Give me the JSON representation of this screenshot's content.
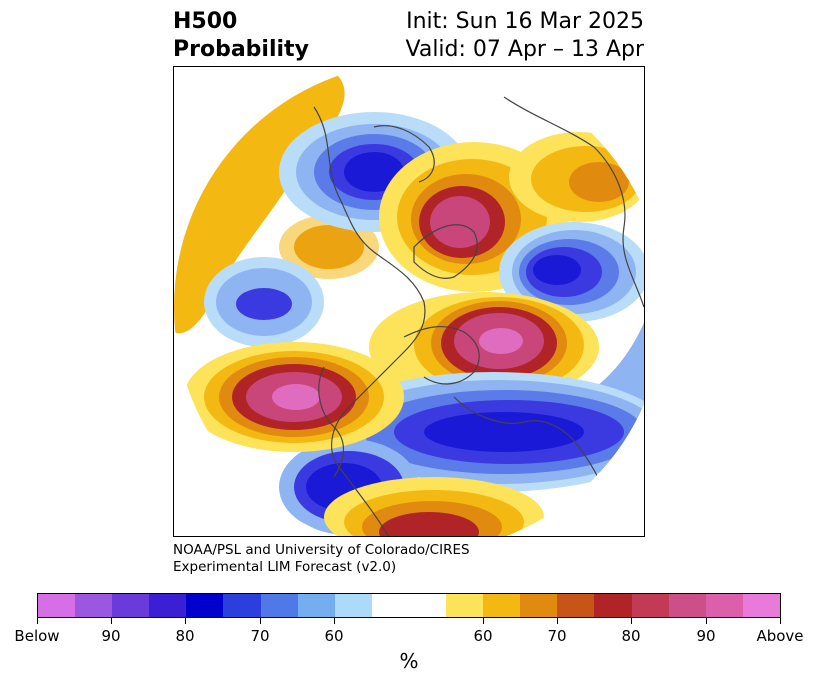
{
  "header": {
    "title_line1": "H500",
    "title_line2": "Probability",
    "init": "Init: Sun 16 Mar 2025",
    "valid": "Valid: 07 Apr – 13 Apr"
  },
  "credit": {
    "line1": "NOAA/PSL and University of Colorado/CIRES",
    "line2": "Experimental LIM Forecast (v2.0)"
  },
  "map": {
    "projection": "north-polar-stereographic",
    "colors": {
      "below_90": "#1a1ad6",
      "below_80": "#3a3ae0",
      "below_70": "#5b7be8",
      "below_60": "#8fb4f2",
      "below_50": "#b9dcf8",
      "above_50": "#fde35a",
      "above_60": "#f4b813",
      "above_70": "#e08a10",
      "above_80": "#b02326",
      "above_90": "#c8467a",
      "above_max": "#e06cbf",
      "coastline": "#444444"
    }
  },
  "colorbar": {
    "colors": [
      "#d66fe6",
      "#9b57e0",
      "#6a3bdb",
      "#3a1fd4",
      "#0000cc",
      "#2b3fdc",
      "#4e79e6",
      "#74aef0",
      "#abdafa",
      "#ffffff",
      "#ffffff",
      "#fde35a",
      "#f4b813",
      "#e08a10",
      "#c85518",
      "#b02326",
      "#c23a54",
      "#cc4f88",
      "#db5faa",
      "#e87ad9"
    ],
    "ticks": [
      "Below",
      "90",
      "80",
      "70",
      "60",
      "60",
      "70",
      "80",
      "90",
      "Above"
    ],
    "unit": "%"
  }
}
